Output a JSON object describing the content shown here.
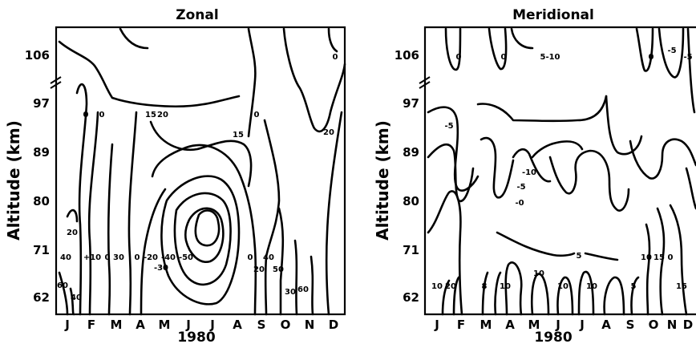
{
  "chart_data": [
    {
      "type": "contour",
      "title": "Zonal",
      "ylabel": "Altitude (km)",
      "xlabel": "1980",
      "yticks": [
        "106",
        "97",
        "89",
        "80",
        "71",
        "62"
      ],
      "xticks": [
        "J",
        "F",
        "M",
        "A",
        "M",
        "J",
        "J",
        "A",
        "S",
        "O",
        "N",
        "D"
      ],
      "contour_labels": [
        "0",
        "0",
        "15",
        "20",
        "0",
        "0",
        "15",
        "20",
        "20",
        "40",
        "+10",
        "0",
        "30",
        "0",
        "-20",
        "-40",
        "-50",
        "-30",
        "0",
        "40",
        "20",
        "50",
        "30",
        "60",
        "60",
        "40"
      ]
    },
    {
      "type": "contour",
      "title": "Meridional",
      "ylabel": "Altitude (km)",
      "xlabel": "1980",
      "yticks": [
        "106",
        "97",
        "89",
        "80",
        "71",
        "62"
      ],
      "xticks": [
        "J",
        "F",
        "M",
        "A",
        "M",
        "J",
        "J",
        "A",
        "S",
        "O",
        "N",
        "D"
      ],
      "contour_labels": [
        "0",
        "0",
        "5-10",
        "0",
        "-5",
        "-5",
        "-5",
        "-10",
        "-5",
        "-0",
        "5",
        "10",
        "15",
        "0",
        "10",
        "20",
        "8",
        "10",
        "10",
        "10",
        "10",
        "5",
        "15"
      ]
    }
  ]
}
